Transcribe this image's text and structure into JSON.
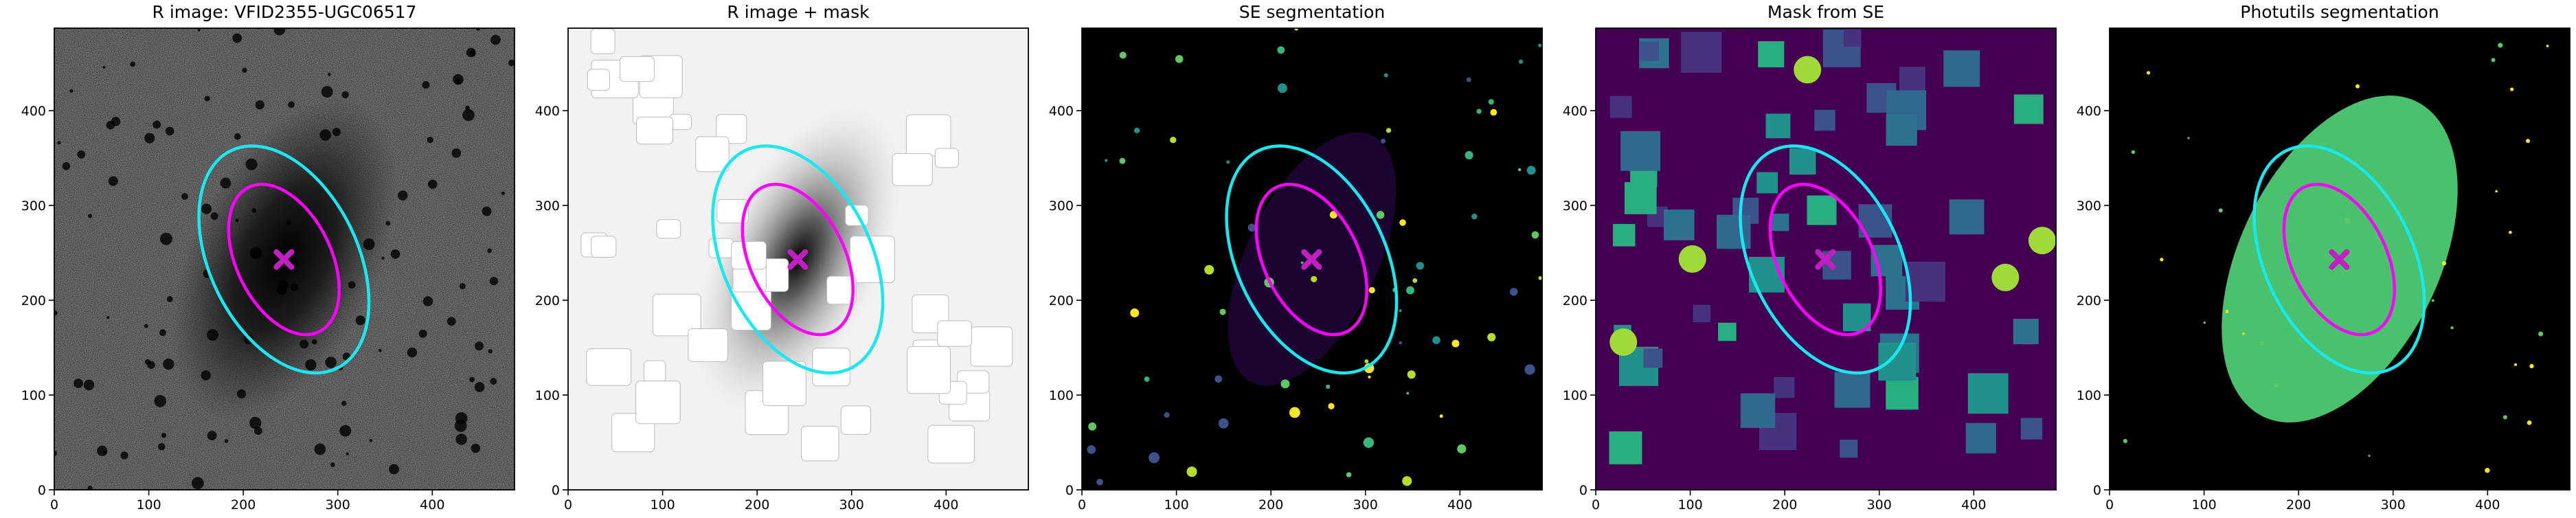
{
  "chart_data": [
    {
      "type": "image",
      "title": "R image: VFID2355-UGC06517",
      "xlim": [
        0,
        487
      ],
      "ylim": [
        0,
        487
      ],
      "xticks": [
        0,
        100,
        200,
        300,
        400
      ],
      "yticks": [
        0,
        100,
        200,
        300,
        400
      ],
      "ellipses": [
        {
          "color": "#18e8f0",
          "x": 243,
          "y": 243,
          "a": 128,
          "b": 78,
          "theta": 116
        },
        {
          "color": "#ff00ff",
          "x": 243,
          "y": 243,
          "a": 85,
          "b": 50,
          "theta": 116
        }
      ],
      "center": {
        "color": "#c21fc2",
        "x": 243,
        "y": 243
      }
    },
    {
      "type": "image",
      "title": "R image + mask",
      "xlim": [
        0,
        487
      ],
      "ylim": [
        0,
        487
      ],
      "xticks": [
        0,
        100,
        200,
        300,
        400
      ],
      "yticks": [
        0,
        100,
        200,
        300,
        400
      ],
      "ellipses": [
        {
          "color": "#18e8f0",
          "x": 243,
          "y": 243,
          "a": 128,
          "b": 78,
          "theta": 116
        },
        {
          "color": "#ff00ff",
          "x": 243,
          "y": 243,
          "a": 85,
          "b": 50,
          "theta": 116
        }
      ],
      "center": {
        "color": "#c21fc2",
        "x": 243,
        "y": 243
      }
    },
    {
      "type": "image",
      "title": "SE segmentation",
      "xlim": [
        0,
        487
      ],
      "ylim": [
        0,
        487
      ],
      "xticks": [
        0,
        100,
        200,
        300,
        400
      ],
      "yticks": [
        0,
        100,
        200,
        300,
        400
      ],
      "ellipses": [
        {
          "color": "#18e8f0",
          "x": 243,
          "y": 243,
          "a": 128,
          "b": 78,
          "theta": 116
        },
        {
          "color": "#ff00ff",
          "x": 243,
          "y": 243,
          "a": 85,
          "b": 50,
          "theta": 116
        }
      ],
      "center": {
        "color": "#c21fc2",
        "x": 243,
        "y": 243
      }
    },
    {
      "type": "image",
      "title": "Mask from SE",
      "xlim": [
        0,
        487
      ],
      "ylim": [
        0,
        487
      ],
      "xticks": [
        0,
        100,
        200,
        300,
        400
      ],
      "yticks": [
        0,
        100,
        200,
        300,
        400
      ],
      "ellipses": [
        {
          "color": "#18e8f0",
          "x": 243,
          "y": 243,
          "a": 128,
          "b": 78,
          "theta": 116
        },
        {
          "color": "#ff00ff",
          "x": 243,
          "y": 243,
          "a": 85,
          "b": 50,
          "theta": 116
        }
      ],
      "center": {
        "color": "#c21fc2",
        "x": 243,
        "y": 243
      }
    },
    {
      "type": "image",
      "title": "Photutils segmentation",
      "xlim": [
        0,
        487
      ],
      "ylim": [
        0,
        487
      ],
      "xticks": [
        0,
        100,
        200,
        300,
        400
      ],
      "yticks": [
        0,
        100,
        200,
        300,
        400
      ],
      "ellipses": [
        {
          "color": "#18e8f0",
          "x": 243,
          "y": 243,
          "a": 128,
          "b": 78,
          "theta": 116
        },
        {
          "color": "#ff00ff",
          "x": 243,
          "y": 243,
          "a": 85,
          "b": 50,
          "theta": 116
        }
      ],
      "center": {
        "color": "#c21fc2",
        "x": 243,
        "y": 243
      }
    }
  ]
}
